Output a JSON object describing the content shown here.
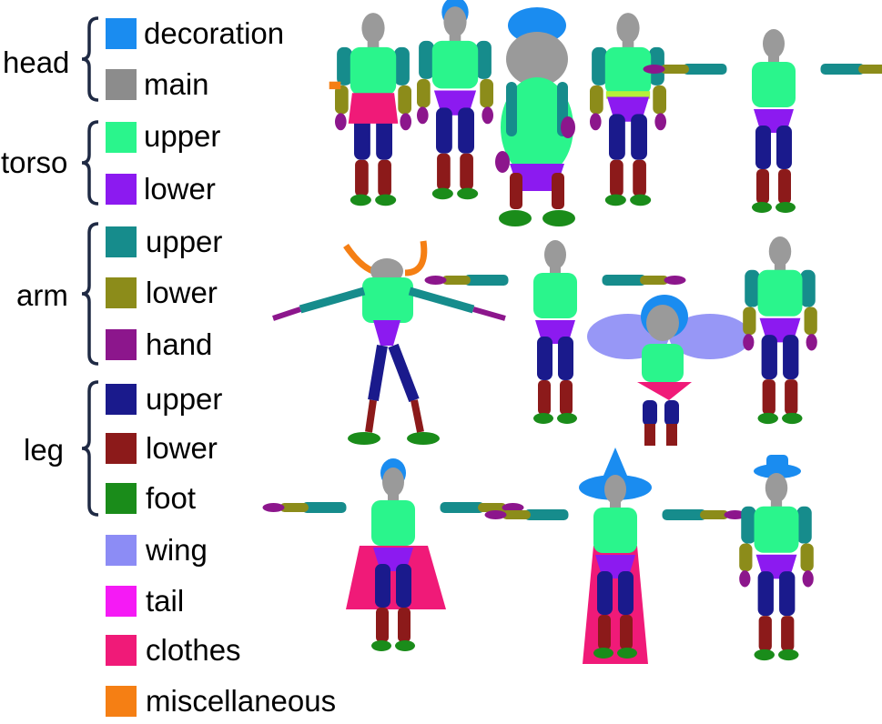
{
  "groups": {
    "head": "head",
    "torso": "torso",
    "arm": "arm",
    "leg": "leg"
  },
  "parts": [
    {
      "label": "decoration",
      "color": "#1a8cf0"
    },
    {
      "label": "main",
      "color": "#8c8c8c"
    },
    {
      "label": "upper",
      "color": "#2af58c"
    },
    {
      "label": "lower",
      "color": "#8c1af0"
    },
    {
      "label": "upper",
      "color": "#168c8c"
    },
    {
      "label": "lower",
      "color": "#8c8c1a"
    },
    {
      "label": "hand",
      "color": "#8c168c"
    },
    {
      "label": "upper",
      "color": "#1a1a8c"
    },
    {
      "label": "lower",
      "color": "#8c1a1a"
    },
    {
      "label": "foot",
      "color": "#1a8c1a"
    },
    {
      "label": "wing",
      "color": "#8c8cf5"
    },
    {
      "label": "tail",
      "color": "#f51af5"
    },
    {
      "label": "clothes",
      "color": "#f01a78"
    },
    {
      "label": "miscellaneous",
      "color": "#f57f14"
    }
  ]
}
